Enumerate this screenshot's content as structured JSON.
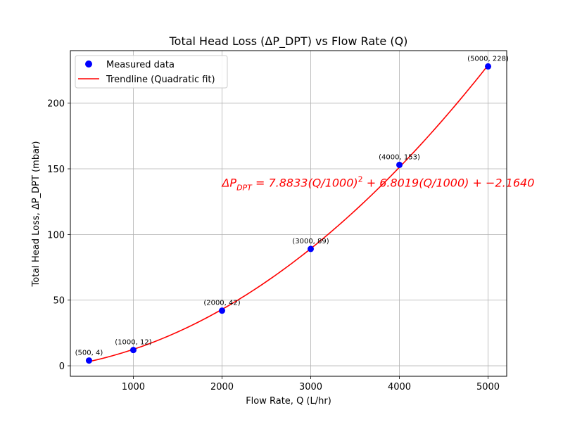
{
  "chart_data": {
    "type": "scatter",
    "title": "Total Head Loss (ΔP_DPT) vs Flow Rate (Q)",
    "xlabel": "Flow Rate, Q (L/hr)",
    "ylabel": "Total Head Loss, ΔP_DPT (mbar)",
    "xlim": [
      290,
      5210
    ],
    "ylim": [
      -8,
      240
    ],
    "x_ticks": [
      1000,
      2000,
      3000,
      4000,
      5000
    ],
    "y_ticks": [
      0,
      50,
      100,
      150,
      200
    ],
    "grid": true,
    "legend_position": "top-left",
    "series": [
      {
        "name": "Measured data",
        "kind": "scatter",
        "color": "#0000ff",
        "x": [
          500,
          1000,
          2000,
          3000,
          4000,
          5000
        ],
        "y": [
          4,
          12,
          42,
          89,
          153,
          228
        ],
        "labels": [
          "(500, 4)",
          "(1000, 12)",
          "(2000, 42)",
          "(3000, 89)",
          "(4000, 153)",
          "(5000, 228)"
        ]
      },
      {
        "name": "Trendline (Quadratic fit)",
        "kind": "line",
        "color": "#ff0000",
        "coefficients": [
          7.8833,
          6.8019,
          -2.164
        ],
        "x_range": [
          500,
          5000
        ]
      }
    ],
    "annotation": {
      "lhs": "ΔP",
      "lhs_sub": "DPT",
      "rhs1": " = 7.8833(Q/1000)",
      "sup": "2",
      "rhs2": " + 6.8019(Q/1000) + −2.1640",
      "color": "#ff0000",
      "anchor_x": 2000,
      "anchor_y": 139
    }
  }
}
